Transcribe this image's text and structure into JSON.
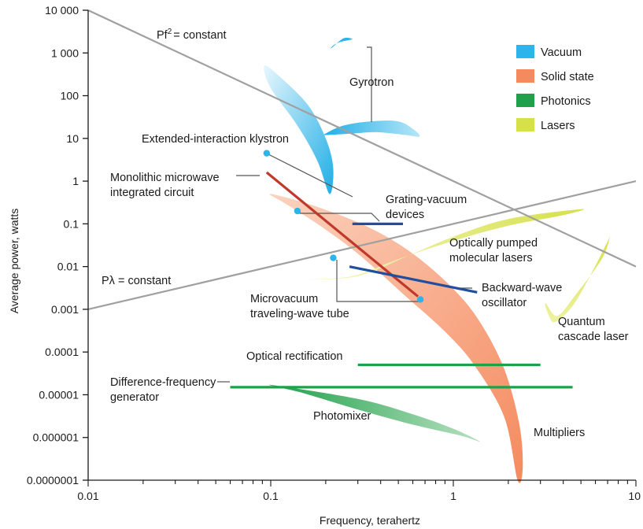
{
  "chart_data": {
    "type": "scatter",
    "xlabel": "Frequency, terahertz",
    "ylabel": "Average power, watts",
    "xscale": "log",
    "yscale": "log",
    "xlim": [
      0.01,
      10
    ],
    "ylim": [
      1e-07,
      10000
    ],
    "x_tick_labels": [
      {
        "value": 0.01,
        "label": "0.01"
      },
      {
        "value": 0.1,
        "label": "0.1"
      },
      {
        "value": 1,
        "label": "1"
      },
      {
        "value": 10,
        "label": "10"
      }
    ],
    "y_tick_labels": [
      {
        "value": 10000,
        "label": "10 000"
      },
      {
        "value": 1000,
        "label": "1 000"
      },
      {
        "value": 100,
        "label": "100"
      },
      {
        "value": 10,
        "label": "10"
      },
      {
        "value": 1,
        "label": "1"
      },
      {
        "value": 0.1,
        "label": "0.1"
      },
      {
        "value": 0.01,
        "label": "0.01"
      },
      {
        "value": 0.001,
        "label": "0.001"
      },
      {
        "value": 0.0001,
        "label": "0.0001"
      },
      {
        "value": 1e-05,
        "label": "0.00001"
      },
      {
        "value": 1e-06,
        "label": "0.000001"
      },
      {
        "value": 1e-07,
        "label": "0.0000001"
      }
    ],
    "legend": {
      "position": "top-right",
      "entries": [
        {
          "label": "Vacuum",
          "color": "#2bb5ea"
        },
        {
          "label": "Solid state",
          "color": "#f58a5e"
        },
        {
          "label": "Photonics",
          "color": "#1fa04a"
        },
        {
          "label": "Lasers",
          "color": "#d6e04a"
        }
      ]
    },
    "constant_lines": [
      {
        "label_main": "Pf",
        "label_sup": "2",
        "label_rest": "= constant",
        "x": [
          0.01,
          10
        ],
        "y": [
          10000,
          0.01
        ],
        "color": "#a0a0a0"
      },
      {
        "label_main": "Pλ = constant",
        "label_sup": "",
        "label_rest": "",
        "x": [
          0.01,
          10
        ],
        "y": [
          0.001,
          1
        ],
        "color": "#a0a0a0"
      }
    ],
    "regions": [
      {
        "name": "Gyrotron",
        "category": "Vacuum",
        "color": "#2bb5ea",
        "points": [
          [
            0.2,
            13
          ],
          [
            0.25,
            20
          ],
          [
            0.35,
            25
          ],
          [
            0.5,
            25
          ],
          [
            0.62,
            15
          ],
          [
            0.65,
            11
          ],
          [
            0.55,
            12
          ],
          [
            0.38,
            14
          ],
          [
            0.28,
            13
          ],
          [
            0.2,
            12
          ]
        ]
      },
      {
        "name": "Gyrotron-top",
        "category": "Vacuum",
        "color": "#2bb5ea",
        "points": [
          [
            0.215,
            1300
          ],
          [
            0.25,
            2200
          ],
          [
            0.28,
            2100
          ],
          [
            0.24,
            1800
          ],
          [
            0.22,
            1500
          ]
        ]
      },
      {
        "name": "Extended-interaction klystron region",
        "category": "Vacuum",
        "color": "#2bb5ea",
        "points": [
          [
            0.092,
            500
          ],
          [
            0.11,
            300
          ],
          [
            0.16,
            60
          ],
          [
            0.2,
            10
          ],
          [
            0.22,
            2
          ],
          [
            0.21,
            0.5
          ],
          [
            0.18,
            3
          ],
          [
            0.14,
            20
          ],
          [
            0.1,
            150
          ]
        ]
      },
      {
        "name": "Solid state",
        "category": "Solid state",
        "color": "#f58a5e",
        "points": [
          [
            0.1,
            0.5
          ],
          [
            0.18,
            0.25
          ],
          [
            0.35,
            0.08
          ],
          [
            0.6,
            0.02
          ],
          [
            1.0,
            0.003
          ],
          [
            1.4,
            0.0005
          ],
          [
            1.9,
            4e-05
          ],
          [
            2.3,
            2e-06
          ],
          [
            2.4,
            2e-07
          ],
          [
            2.25,
            1e-07
          ],
          [
            1.9,
            3e-06
          ],
          [
            1.3,
            5e-05
          ],
          [
            0.9,
            0.0003
          ],
          [
            0.55,
            0.002
          ],
          [
            0.3,
            0.02
          ],
          [
            0.18,
            0.1
          ],
          [
            0.12,
            0.3
          ]
        ]
      },
      {
        "name": "Photomixer",
        "category": "Photonics",
        "color": "#1fa04a",
        "points": [
          [
            0.1,
            1.7e-05
          ],
          [
            0.3,
            8e-06
          ],
          [
            0.6,
            3.5e-06
          ],
          [
            1.0,
            1.6e-06
          ],
          [
            1.4,
            8e-07
          ],
          [
            1.1,
            1.1e-06
          ],
          [
            0.6,
            2e-06
          ],
          [
            0.3,
            4.5e-06
          ],
          [
            0.15,
            1.1e-05
          ]
        ]
      },
      {
        "name": "Optically pumped molecular lasers",
        "category": "Lasers",
        "color": "#d6e04a",
        "points": [
          [
            0.15,
            0.005
          ],
          [
            0.3,
            0.006
          ],
          [
            0.6,
            0.02
          ],
          [
            1.0,
            0.05
          ],
          [
            2.0,
            0.13
          ],
          [
            5.0,
            0.22
          ],
          [
            4.0,
            0.16
          ],
          [
            2.0,
            0.09
          ],
          [
            1.0,
            0.04
          ],
          [
            0.5,
            0.015
          ],
          [
            0.28,
            0.006
          ]
        ]
      },
      {
        "name": "Quantum cascade laser",
        "category": "Lasers",
        "color": "#d6e04a",
        "points": [
          [
            3.2,
            0.0014
          ],
          [
            3.7,
            0.0007
          ],
          [
            4.6,
            0.002
          ],
          [
            6.5,
            0.015
          ],
          [
            7.2,
            0.05
          ],
          [
            6.8,
            0.03
          ],
          [
            5.6,
            0.006
          ],
          [
            4.5,
            0.0012
          ],
          [
            3.6,
            0.0005
          ],
          [
            3.3,
            0.0008
          ]
        ]
      }
    ],
    "line_series": [
      {
        "name": "Monolithic microwave integrated circuit",
        "color": "#c0392b",
        "x": [
          0.095,
          0.64
        ],
        "y": [
          1.6,
          0.002
        ]
      },
      {
        "name": "Grating-vacuum devices",
        "color": "#1f4f9e",
        "x": [
          0.28,
          0.53
        ],
        "y": [
          0.1,
          0.1
        ]
      },
      {
        "name": "Backward-wave oscillator",
        "color": "#1f4f9e",
        "x": [
          0.27,
          1.35
        ],
        "y": [
          0.01,
          0.0025
        ]
      },
      {
        "name": "Optical rectification",
        "color": "#1fa04a",
        "x": [
          0.3,
          3.0
        ],
        "y": [
          5e-05,
          5e-05
        ]
      },
      {
        "name": "Difference-frequency generator",
        "color": "#1fa04a",
        "x": [
          0.06,
          4.5
        ],
        "y": [
          1.5e-05,
          1.5e-05
        ]
      }
    ],
    "points": [
      {
        "name": "Extended-interaction klystron point",
        "x": 0.095,
        "y": 4.5,
        "color": "#2bb5ea"
      },
      {
        "name": "Grating-vacuum point",
        "x": 0.14,
        "y": 0.2,
        "color": "#2bb5ea"
      },
      {
        "name": "Microvacuum point 1",
        "x": 0.22,
        "y": 0.016,
        "color": "#2bb5ea"
      },
      {
        "name": "Microvacuum point 2",
        "x": 0.66,
        "y": 0.0017,
        "color": "#2bb5ea"
      }
    ],
    "annotations": [
      {
        "text": "Gyrotron",
        "lines": [
          "Gyrotron"
        ]
      },
      {
        "text": "Extended-interaction klystron",
        "lines": [
          "Extended-interaction klystron"
        ]
      },
      {
        "text": "Monolithic microwave integrated circuit",
        "lines": [
          "Monolithic microwave",
          "integrated circuit"
        ]
      },
      {
        "text": "Grating-vacuum devices",
        "lines": [
          "Grating-vacuum",
          "devices"
        ]
      },
      {
        "text": "Optically pumped molecular lasers",
        "lines": [
          "Optically pumped",
          "molecular lasers"
        ]
      },
      {
        "text": "Backward-wave oscillator",
        "lines": [
          "Backward-wave",
          "oscillator"
        ]
      },
      {
        "text": "Microvacuum traveling-wave tube",
        "lines": [
          "Microvacuum",
          "traveling-wave tube"
        ]
      },
      {
        "text": "Quantum cascade laser",
        "lines": [
          "Quantum",
          "cascade laser"
        ]
      },
      {
        "text": "Optical rectification",
        "lines": [
          "Optical rectification"
        ]
      },
      {
        "text": "Difference-frequency generator",
        "lines": [
          "Difference-frequency",
          "generator"
        ]
      },
      {
        "text": "Photomixer",
        "lines": [
          "Photomixer"
        ]
      },
      {
        "text": "Multipliers",
        "lines": [
          "Multipliers"
        ]
      }
    ],
    "grid": false
  }
}
